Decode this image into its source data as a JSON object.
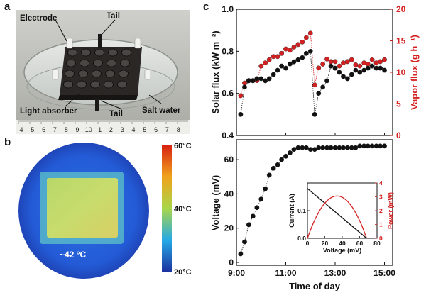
{
  "panels": {
    "a": "a",
    "b": "b",
    "c": "c"
  },
  "photo": {
    "labels": {
      "electrode": "Electrode",
      "tail_top": "Tail",
      "light_absorber": "Light absorber",
      "tail_bottom": "Tail",
      "salt_water": "Salt water"
    },
    "ruler_numbers": [
      "4",
      "5",
      "6",
      "7",
      "8",
      "9",
      "10",
      "1",
      "2",
      "3",
      "4",
      "5",
      "6",
      "7",
      "8"
    ]
  },
  "thermal": {
    "spot_label": "~42 °C",
    "scale_labels": [
      "60°C",
      "40°C",
      "20°C"
    ]
  },
  "chart_data": [
    {
      "type": "scatter",
      "name": "solar-and-vapor-flux",
      "xlabel": "",
      "ylabel": "Solar flux (kW m⁻²)",
      "ylabel2": "Vapor flux (g h⁻¹)",
      "xlim": [
        9,
        15.33
      ],
      "ylim": [
        0.4,
        1.0
      ],
      "ylim2": [
        0,
        20
      ],
      "yticks": [
        0.4,
        0.6,
        0.8,
        1.0
      ],
      "ytick_labels": [
        "0.4",
        "0.6",
        "0.8",
        "1.0"
      ],
      "yticks2": [
        0,
        5,
        10,
        15,
        20
      ],
      "ytick2_labels": [
        "0",
        "5",
        "10",
        "15",
        "20"
      ],
      "series": [
        {
          "name": "Solar flux",
          "color": "#111111",
          "axis": "left",
          "x": [
            9.17,
            9.33,
            9.5,
            9.67,
            9.83,
            10.0,
            10.17,
            10.33,
            10.5,
            10.67,
            10.83,
            11.0,
            11.17,
            11.33,
            11.5,
            11.67,
            11.83,
            12.0,
            12.17,
            12.33,
            12.5,
            12.67,
            12.83,
            13.0,
            13.17,
            13.33,
            13.5,
            13.67,
            13.83,
            14.0,
            14.17,
            14.33,
            14.5,
            14.67,
            14.83,
            15.0
          ],
          "y": [
            0.5,
            0.63,
            0.66,
            0.66,
            0.67,
            0.67,
            0.66,
            0.67,
            0.69,
            0.71,
            0.73,
            0.72,
            0.74,
            0.75,
            0.76,
            0.77,
            0.79,
            0.8,
            0.5,
            0.6,
            0.63,
            0.66,
            0.73,
            0.72,
            0.7,
            0.68,
            0.67,
            0.69,
            0.71,
            0.7,
            0.71,
            0.72,
            0.73,
            0.72,
            0.72,
            0.71
          ]
        },
        {
          "name": "Vapor flux",
          "color": "#d42020",
          "axis": "right",
          "x": [
            9.17,
            9.33,
            9.5,
            9.67,
            9.83,
            10.0,
            10.17,
            10.33,
            10.5,
            10.67,
            10.83,
            11.0,
            11.17,
            11.33,
            11.5,
            11.67,
            11.83,
            12.0,
            12.17,
            12.33,
            12.5,
            12.67,
            12.83,
            13.0,
            13.17,
            13.33,
            13.5,
            13.67,
            13.83,
            14.0,
            14.17,
            14.33,
            14.5,
            14.67,
            14.83,
            15.0
          ],
          "y": [
            6.3,
            8.3,
            8.7,
            8.7,
            8.7,
            11.0,
            11.5,
            12.0,
            12.5,
            12.5,
            13.0,
            13.7,
            13.5,
            14.0,
            14.4,
            14.8,
            15.5,
            16.2,
            8.0,
            10.7,
            11.3,
            12.1,
            11.7,
            11.7,
            11.0,
            11.5,
            11.7,
            12.0,
            11.2,
            11.0,
            11.5,
            11.3,
            12.0,
            11.5,
            11.7,
            12.0
          ]
        }
      ]
    },
    {
      "type": "scatter",
      "name": "voltage",
      "xlabel": "Time of day",
      "ylabel": "Voltage (mV)",
      "xlim": [
        9,
        15.33
      ],
      "ylim": [
        0,
        70
      ],
      "xticks": [
        9,
        11,
        13,
        15
      ],
      "xtick_labels": [
        "9:00",
        "11:00",
        "13:00",
        "15:00"
      ],
      "yticks": [
        0,
        20,
        40,
        60
      ],
      "ytick_labels": [
        "0",
        "20",
        "40",
        "60"
      ],
      "series": [
        {
          "name": "Voltage",
          "color": "#111111",
          "x": [
            9.17,
            9.33,
            9.5,
            9.67,
            9.83,
            10.0,
            10.17,
            10.33,
            10.5,
            10.67,
            10.83,
            11.0,
            11.17,
            11.33,
            11.5,
            11.67,
            11.83,
            12.0,
            12.17,
            12.33,
            12.5,
            12.67,
            12.83,
            13.0,
            13.17,
            13.33,
            13.5,
            13.67,
            13.83,
            14.0,
            14.17,
            14.33,
            14.5,
            14.67,
            14.83,
            15.0
          ],
          "y": [
            5,
            12,
            22,
            27,
            32,
            37,
            43,
            51,
            55,
            57,
            60,
            62,
            64,
            66,
            67,
            67,
            67,
            66,
            66,
            67,
            67,
            67,
            67,
            67,
            67,
            67,
            67,
            67,
            67,
            68,
            68,
            68,
            68,
            68,
            68,
            68
          ]
        }
      ]
    },
    {
      "type": "line",
      "name": "iv-inset",
      "xlabel": "Voltage (mV)",
      "ylabel": "Current (A)",
      "ylabel2": "Power (mW)",
      "xlim": [
        0,
        80
      ],
      "ylim": [
        0,
        0.2
      ],
      "ylim2": [
        0,
        4
      ],
      "xticks": [
        0,
        20,
        40,
        60,
        80
      ],
      "xtick_labels": [
        "0",
        "20",
        "40",
        "60",
        "80"
      ],
      "yticks": [
        0,
        0.1
      ],
      "ytick_labels": [
        "0.0",
        "0.1"
      ],
      "yticks2": [
        0,
        1,
        2,
        3,
        4
      ],
      "ytick2_labels": [
        "0",
        "1",
        "2",
        "3",
        "4"
      ],
      "series": [
        {
          "name": "Current",
          "color": "#111111",
          "axis": "left",
          "x": [
            0,
            68
          ],
          "y": [
            0.18,
            0
          ]
        },
        {
          "name": "Power",
          "color": "#d42020",
          "axis": "right",
          "x": [
            0,
            8.5,
            17,
            25.5,
            34,
            42.5,
            51,
            59.5,
            68
          ],
          "y": [
            0,
            1.34,
            2.3,
            2.87,
            3.06,
            2.87,
            2.3,
            1.34,
            0
          ]
        }
      ]
    }
  ]
}
